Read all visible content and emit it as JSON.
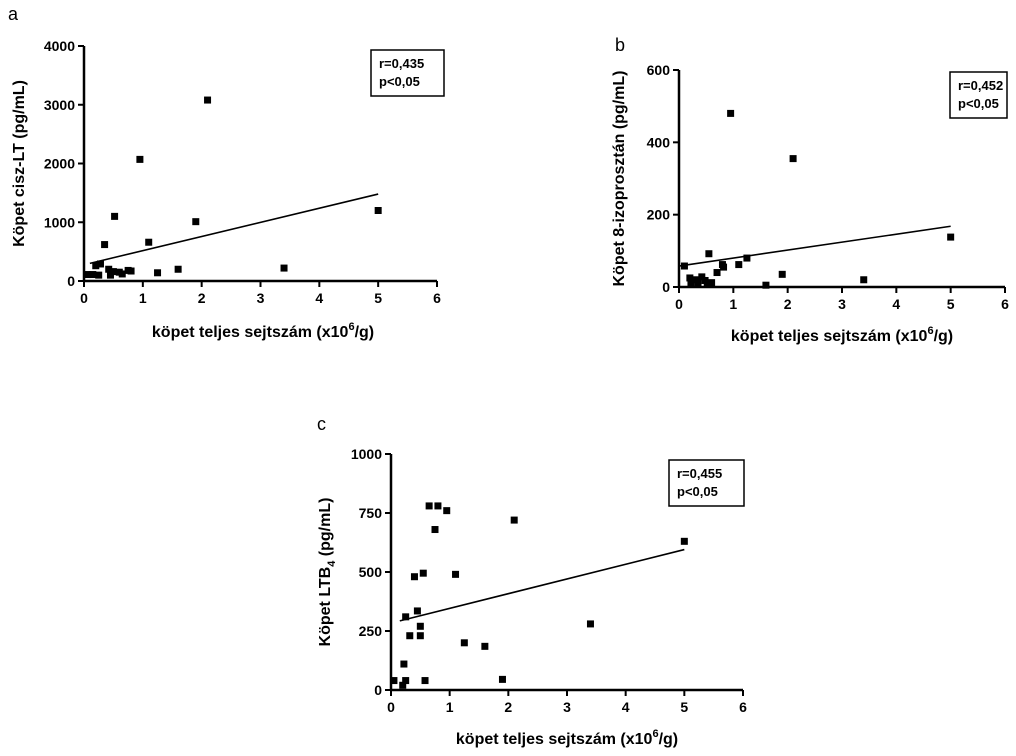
{
  "chart_data": [
    {
      "type": "scatter",
      "panel_letter": "a",
      "xlabel": "köpet teljes sejtszám (x10",
      "xlabel_sup": "6",
      "xlabel_tail": "/g)",
      "ylabel": "Köpet cisz-LT (pg/mL)",
      "xlim": [
        0,
        6
      ],
      "ylim": [
        0,
        4000
      ],
      "xticks": [
        0,
        1,
        2,
        3,
        4,
        5,
        6
      ],
      "yticks": [
        0,
        1000,
        2000,
        3000,
        4000
      ],
      "stats": {
        "r": "r=0,435",
        "p": "p<0,05"
      },
      "regression_line": {
        "x": [
          0.1,
          5.0
        ],
        "y": [
          300,
          1480
        ]
      },
      "points": [
        {
          "x": 0.05,
          "y": 110
        },
        {
          "x": 0.15,
          "y": 110
        },
        {
          "x": 0.2,
          "y": 260
        },
        {
          "x": 0.25,
          "y": 100
        },
        {
          "x": 0.28,
          "y": 290
        },
        {
          "x": 0.35,
          "y": 620
        },
        {
          "x": 0.42,
          "y": 200
        },
        {
          "x": 0.45,
          "y": 100
        },
        {
          "x": 0.5,
          "y": 160
        },
        {
          "x": 0.52,
          "y": 1100
        },
        {
          "x": 0.6,
          "y": 150
        },
        {
          "x": 0.65,
          "y": 120
        },
        {
          "x": 0.75,
          "y": 180
        },
        {
          "x": 0.8,
          "y": 170
        },
        {
          "x": 0.95,
          "y": 2070
        },
        {
          "x": 1.1,
          "y": 660
        },
        {
          "x": 1.25,
          "y": 140
        },
        {
          "x": 1.6,
          "y": 200
        },
        {
          "x": 1.9,
          "y": 1010
        },
        {
          "x": 2.1,
          "y": 3080
        },
        {
          "x": 3.4,
          "y": 220
        },
        {
          "x": 5.0,
          "y": 1200
        }
      ]
    },
    {
      "type": "scatter",
      "panel_letter": "b",
      "xlabel": "köpet teljes sejtszám (x10",
      "xlabel_sup": "6",
      "xlabel_tail": "/g)",
      "ylabel": "Köpet 8-izoprosztán (pg/mL)",
      "xlim": [
        0,
        6
      ],
      "ylim": [
        0,
        600
      ],
      "xticks": [
        0,
        1,
        2,
        3,
        4,
        5,
        6
      ],
      "yticks": [
        0,
        200,
        400,
        600
      ],
      "stats": {
        "r": "r=0,452",
        "p": "p<0,05"
      },
      "regression_line": {
        "x": [
          0.0,
          5.0
        ],
        "y": [
          58,
          168
        ]
      },
      "points": [
        {
          "x": 0.1,
          "y": 58
        },
        {
          "x": 0.2,
          "y": 25
        },
        {
          "x": 0.22,
          "y": 10
        },
        {
          "x": 0.3,
          "y": 20
        },
        {
          "x": 0.35,
          "y": 12
        },
        {
          "x": 0.42,
          "y": 28
        },
        {
          "x": 0.48,
          "y": 18
        },
        {
          "x": 0.52,
          "y": 8
        },
        {
          "x": 0.55,
          "y": 92
        },
        {
          "x": 0.6,
          "y": 12
        },
        {
          "x": 0.7,
          "y": 40
        },
        {
          "x": 0.8,
          "y": 62
        },
        {
          "x": 0.82,
          "y": 55
        },
        {
          "x": 0.95,
          "y": 480
        },
        {
          "x": 1.1,
          "y": 62
        },
        {
          "x": 1.25,
          "y": 80
        },
        {
          "x": 1.6,
          "y": 5
        },
        {
          "x": 1.9,
          "y": 35
        },
        {
          "x": 2.1,
          "y": 355
        },
        {
          "x": 3.4,
          "y": 20
        },
        {
          "x": 5.0,
          "y": 138
        }
      ]
    },
    {
      "type": "scatter",
      "panel_letter": "c",
      "xlabel": "köpet teljes sejtszám (x10",
      "xlabel_sup": "6",
      "xlabel_tail": "/g)",
      "ylabel": "Köpet LTB",
      "ylabel_sub": "4",
      "ylabel_tail": " (pg/mL)",
      "xlim": [
        0,
        6
      ],
      "ylim": [
        0,
        1000
      ],
      "xticks": [
        0,
        1,
        2,
        3,
        4,
        5,
        6
      ],
      "yticks": [
        0,
        250,
        500,
        750,
        1000
      ],
      "stats": {
        "r": "r=0,455",
        "p": "p<0,05"
      },
      "regression_line": {
        "x": [
          0.15,
          5.0
        ],
        "y": [
          293,
          595
        ]
      },
      "points": [
        {
          "x": 0.05,
          "y": 40
        },
        {
          "x": 0.2,
          "y": 20
        },
        {
          "x": 0.22,
          "y": 110
        },
        {
          "x": 0.25,
          "y": 40
        },
        {
          "x": 0.25,
          "y": 310
        },
        {
          "x": 0.32,
          "y": 230
        },
        {
          "x": 0.4,
          "y": 480
        },
        {
          "x": 0.45,
          "y": 335
        },
        {
          "x": 0.5,
          "y": 270
        },
        {
          "x": 0.5,
          "y": 230
        },
        {
          "x": 0.55,
          "y": 495
        },
        {
          "x": 0.58,
          "y": 40
        },
        {
          "x": 0.65,
          "y": 780
        },
        {
          "x": 0.75,
          "y": 680
        },
        {
          "x": 0.8,
          "y": 780
        },
        {
          "x": 0.95,
          "y": 760
        },
        {
          "x": 1.1,
          "y": 490
        },
        {
          "x": 1.25,
          "y": 200
        },
        {
          "x": 1.6,
          "y": 185
        },
        {
          "x": 1.9,
          "y": 45
        },
        {
          "x": 2.1,
          "y": 720
        },
        {
          "x": 3.4,
          "y": 280
        },
        {
          "x": 5.0,
          "y": 630
        }
      ]
    }
  ]
}
